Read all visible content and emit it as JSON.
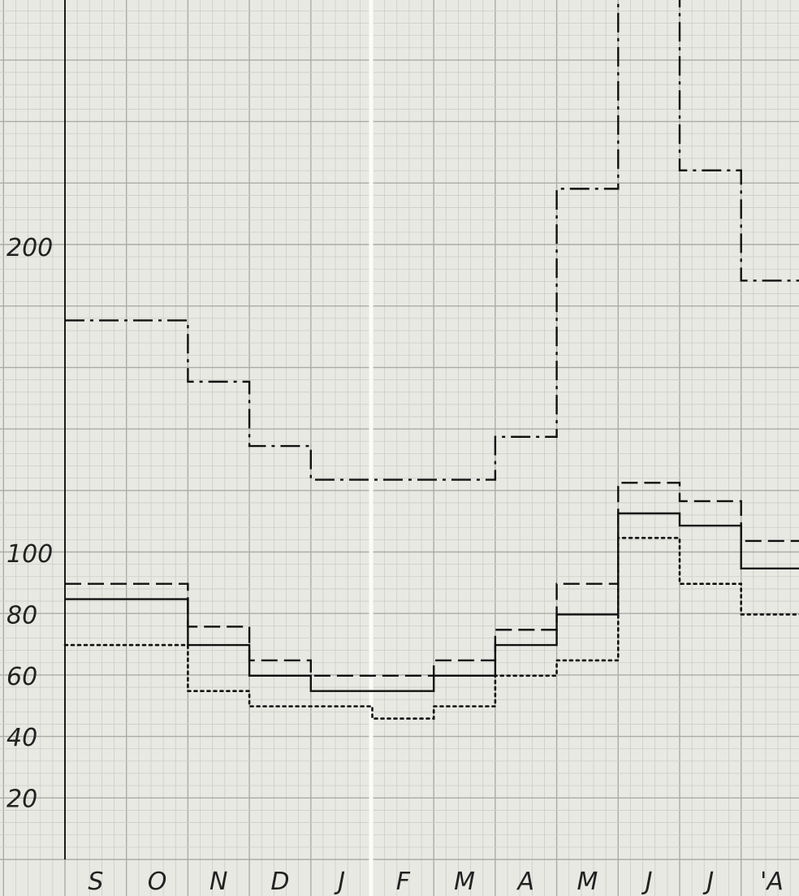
{
  "chart_data": {
    "type": "line",
    "style": "step",
    "grid": true,
    "categories": [
      "S",
      "O",
      "N",
      "D",
      "J",
      "F",
      "M",
      "A",
      "M",
      "J",
      "J",
      "'A"
    ],
    "y_ticks": [
      "20",
      "40",
      "60",
      "80",
      "100",
      "200"
    ],
    "series": [
      {
        "line_style": "dash-dot",
        "values": [
          176,
          176,
          156,
          135,
          124,
          124,
          124,
          138,
          219,
          284,
          225,
          189
        ]
      },
      {
        "line_style": "dashed",
        "values": [
          90,
          90,
          76,
          65,
          60,
          60,
          65,
          75,
          90,
          123,
          117,
          104
        ]
      },
      {
        "line_style": "solid",
        "values": [
          85,
          85,
          70,
          60,
          55,
          55,
          60,
          70,
          80,
          113,
          109,
          95
        ]
      },
      {
        "line_style": "dotted",
        "values": [
          70,
          70,
          55,
          50,
          50,
          46,
          50,
          60,
          65,
          105,
          90,
          80
        ]
      }
    ]
  }
}
